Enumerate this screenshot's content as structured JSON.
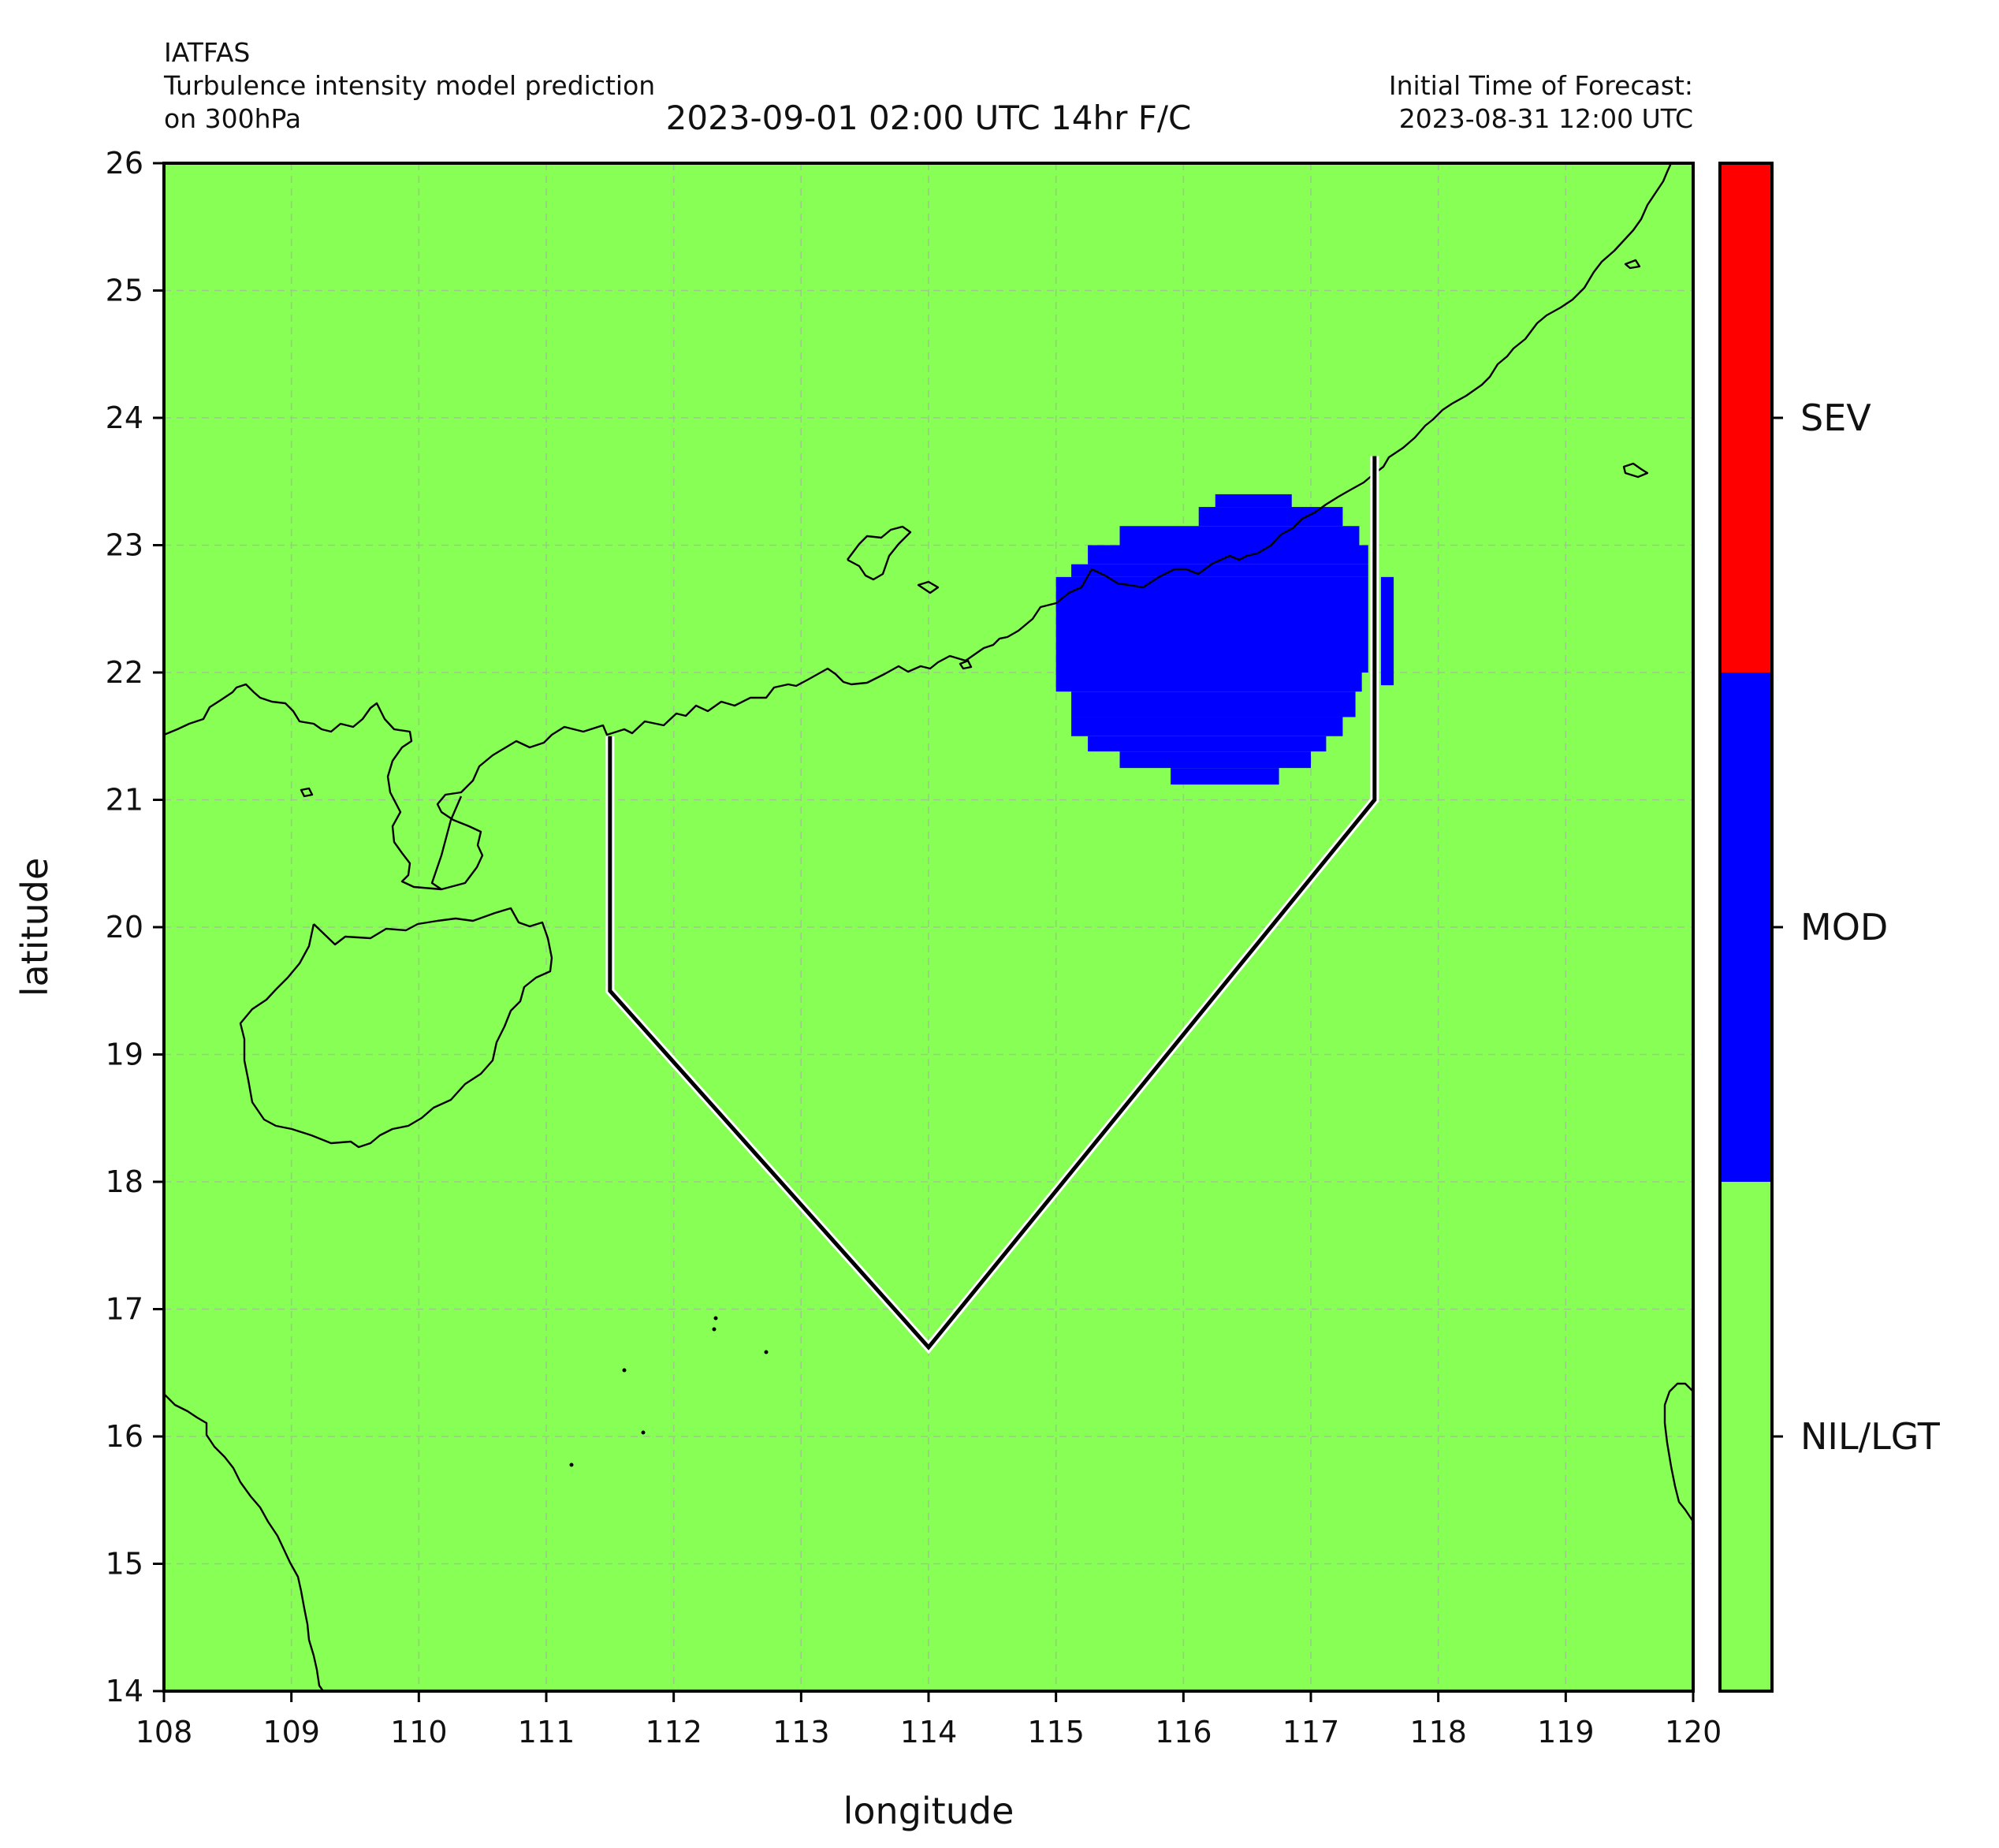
{
  "header": {
    "source": "IATFAS",
    "product": "Turbulence intensity model prediction",
    "level": "on 300hPa",
    "valid_time": "2023-09-01 02:00 UTC 14hr F/C",
    "init_label": "Initial Time of Forecast:",
    "init_time": "2023-08-31 12:00 UTC"
  },
  "map": {
    "background_color": "#88ff55",
    "coastline_color": "#000000",
    "grid": "on",
    "lon_range": [
      108,
      120
    ],
    "lat_range": [
      14,
      26
    ]
  },
  "chart_data": {
    "type": "heatmap",
    "xlabel": "longitude",
    "ylabel": "latitude",
    "xlim": [
      108,
      120
    ],
    "ylim": [
      14,
      26
    ],
    "x_ticks": [
      "108",
      "109",
      "110",
      "111",
      "112",
      "113",
      "114",
      "115",
      "116",
      "117",
      "118",
      "119",
      "120"
    ],
    "y_ticks": [
      "14",
      "15",
      "16",
      "17",
      "18",
      "19",
      "20",
      "21",
      "22",
      "23",
      "24",
      "25",
      "26"
    ],
    "turbulence_area": {
      "category": "MOD",
      "color": "#0000ff",
      "approx_bounds": {
        "lon": [
          115.0,
          117.65
        ],
        "lat": [
          21.1,
          23.4
        ]
      }
    },
    "route": {
      "points": [
        [
          111.5,
          21.5
        ],
        [
          111.5,
          19.5
        ],
        [
          114.0,
          16.7
        ],
        [
          117.5,
          21.0
        ],
        [
          117.5,
          23.7
        ]
      ]
    }
  },
  "colorbar": {
    "categories": [
      {
        "label": "NIL/LGT",
        "color": "#88ff55"
      },
      {
        "label": "MOD",
        "color": "#0000ff"
      },
      {
        "label": "SEV",
        "color": "#ff0000"
      }
    ]
  }
}
